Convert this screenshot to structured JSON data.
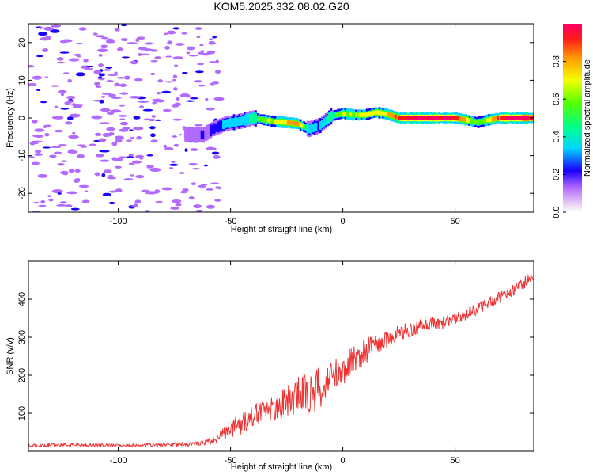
{
  "chart_data": [
    {
      "id": "spectrogram",
      "type": "heatmap",
      "title": "KOM5.2025.332.08.02.G20",
      "xlabel": "Height of straight line (km)",
      "ylabel": "Frequency (Hz)",
      "xlim": [
        -140,
        85
      ],
      "ylim": [
        -25,
        25
      ],
      "xticks": [
        -100,
        -50,
        0,
        50
      ],
      "yticks": [
        -20,
        -10,
        0,
        10,
        20
      ],
      "colorbar": {
        "label": "Normalized spectral amplitude",
        "range": [
          0,
          1
        ],
        "ticks": [
          0.0,
          0.2,
          0.4,
          0.6,
          0.8
        ]
      },
      "noise_region": {
        "x_range": [
          -140,
          -55
        ],
        "y_range": [
          -25,
          25
        ],
        "typical_amplitude": 0.2
      },
      "ridge": [
        {
          "x": -70,
          "f": -4.5,
          "a": 0.1
        },
        {
          "x": -62,
          "f": -4.5,
          "a": 0.12
        },
        {
          "x": -58,
          "f": -3.0,
          "a": 0.15
        },
        {
          "x": -52,
          "f": -1.5,
          "a": 0.28
        },
        {
          "x": -45,
          "f": -0.8,
          "a": 0.3
        },
        {
          "x": -40,
          "f": 0.0,
          "a": 0.33
        },
        {
          "x": -35,
          "f": -0.5,
          "a": 0.55
        },
        {
          "x": -30,
          "f": -1.0,
          "a": 0.62
        },
        {
          "x": -25,
          "f": -1.2,
          "a": 0.7
        },
        {
          "x": -20,
          "f": -1.5,
          "a": 0.8
        },
        {
          "x": -15,
          "f": -3.0,
          "a": 0.3
        },
        {
          "x": -10,
          "f": -2.0,
          "a": 0.25
        },
        {
          "x": -5,
          "f": 0.5,
          "a": 0.4
        },
        {
          "x": 0,
          "f": 1.2,
          "a": 0.55
        },
        {
          "x": 5,
          "f": 0.8,
          "a": 0.6
        },
        {
          "x": 10,
          "f": 0.8,
          "a": 0.65
        },
        {
          "x": 15,
          "f": 1.5,
          "a": 0.6
        },
        {
          "x": 20,
          "f": 1.0,
          "a": 0.7
        },
        {
          "x": 25,
          "f": 0.0,
          "a": 0.85
        },
        {
          "x": 30,
          "f": 0.0,
          "a": 0.95
        },
        {
          "x": 40,
          "f": 0.0,
          "a": 0.95
        },
        {
          "x": 50,
          "f": 0.0,
          "a": 0.9
        },
        {
          "x": 55,
          "f": -0.5,
          "a": 0.7
        },
        {
          "x": 60,
          "f": -1.2,
          "a": 0.5
        },
        {
          "x": 65,
          "f": -0.5,
          "a": 0.6
        },
        {
          "x": 70,
          "f": 0.0,
          "a": 0.85
        },
        {
          "x": 75,
          "f": 0.0,
          "a": 0.95
        },
        {
          "x": 85,
          "f": 0.0,
          "a": 0.95
        }
      ]
    },
    {
      "id": "snr",
      "type": "line",
      "xlabel": "Height of straight line (km)",
      "ylabel": "SNR (v/v)",
      "xlim": [
        -140,
        85
      ],
      "ylim": [
        0,
        500
      ],
      "xticks": [
        -100,
        -50,
        0,
        50
      ],
      "yticks": [
        100,
        200,
        300,
        400
      ],
      "series": [
        {
          "name": "SNR",
          "color": "#ee3333",
          "x": [
            -140,
            -120,
            -100,
            -80,
            -65,
            -58,
            -55,
            -50,
            -45,
            -40,
            -35,
            -30,
            -25,
            -20,
            -15,
            -10,
            -5,
            0,
            5,
            10,
            15,
            20,
            25,
            30,
            35,
            40,
            45,
            50,
            55,
            60,
            65,
            70,
            75,
            80,
            85
          ],
          "values": [
            15,
            18,
            15,
            17,
            20,
            28,
            40,
            60,
            75,
            95,
            105,
            115,
            130,
            145,
            150,
            165,
            200,
            215,
            240,
            265,
            285,
            300,
            310,
            320,
            330,
            335,
            340,
            350,
            360,
            375,
            390,
            405,
            420,
            440,
            460
          ],
          "noise_amplitude": [
            4,
            5,
            4,
            5,
            6,
            10,
            15,
            25,
            30,
            30,
            30,
            35,
            40,
            55,
            60,
            60,
            45,
            40,
            40,
            35,
            30,
            25,
            22,
            20,
            18,
            18,
            18,
            16,
            16,
            15,
            15,
            15,
            15,
            15,
            15
          ]
        }
      ]
    }
  ]
}
